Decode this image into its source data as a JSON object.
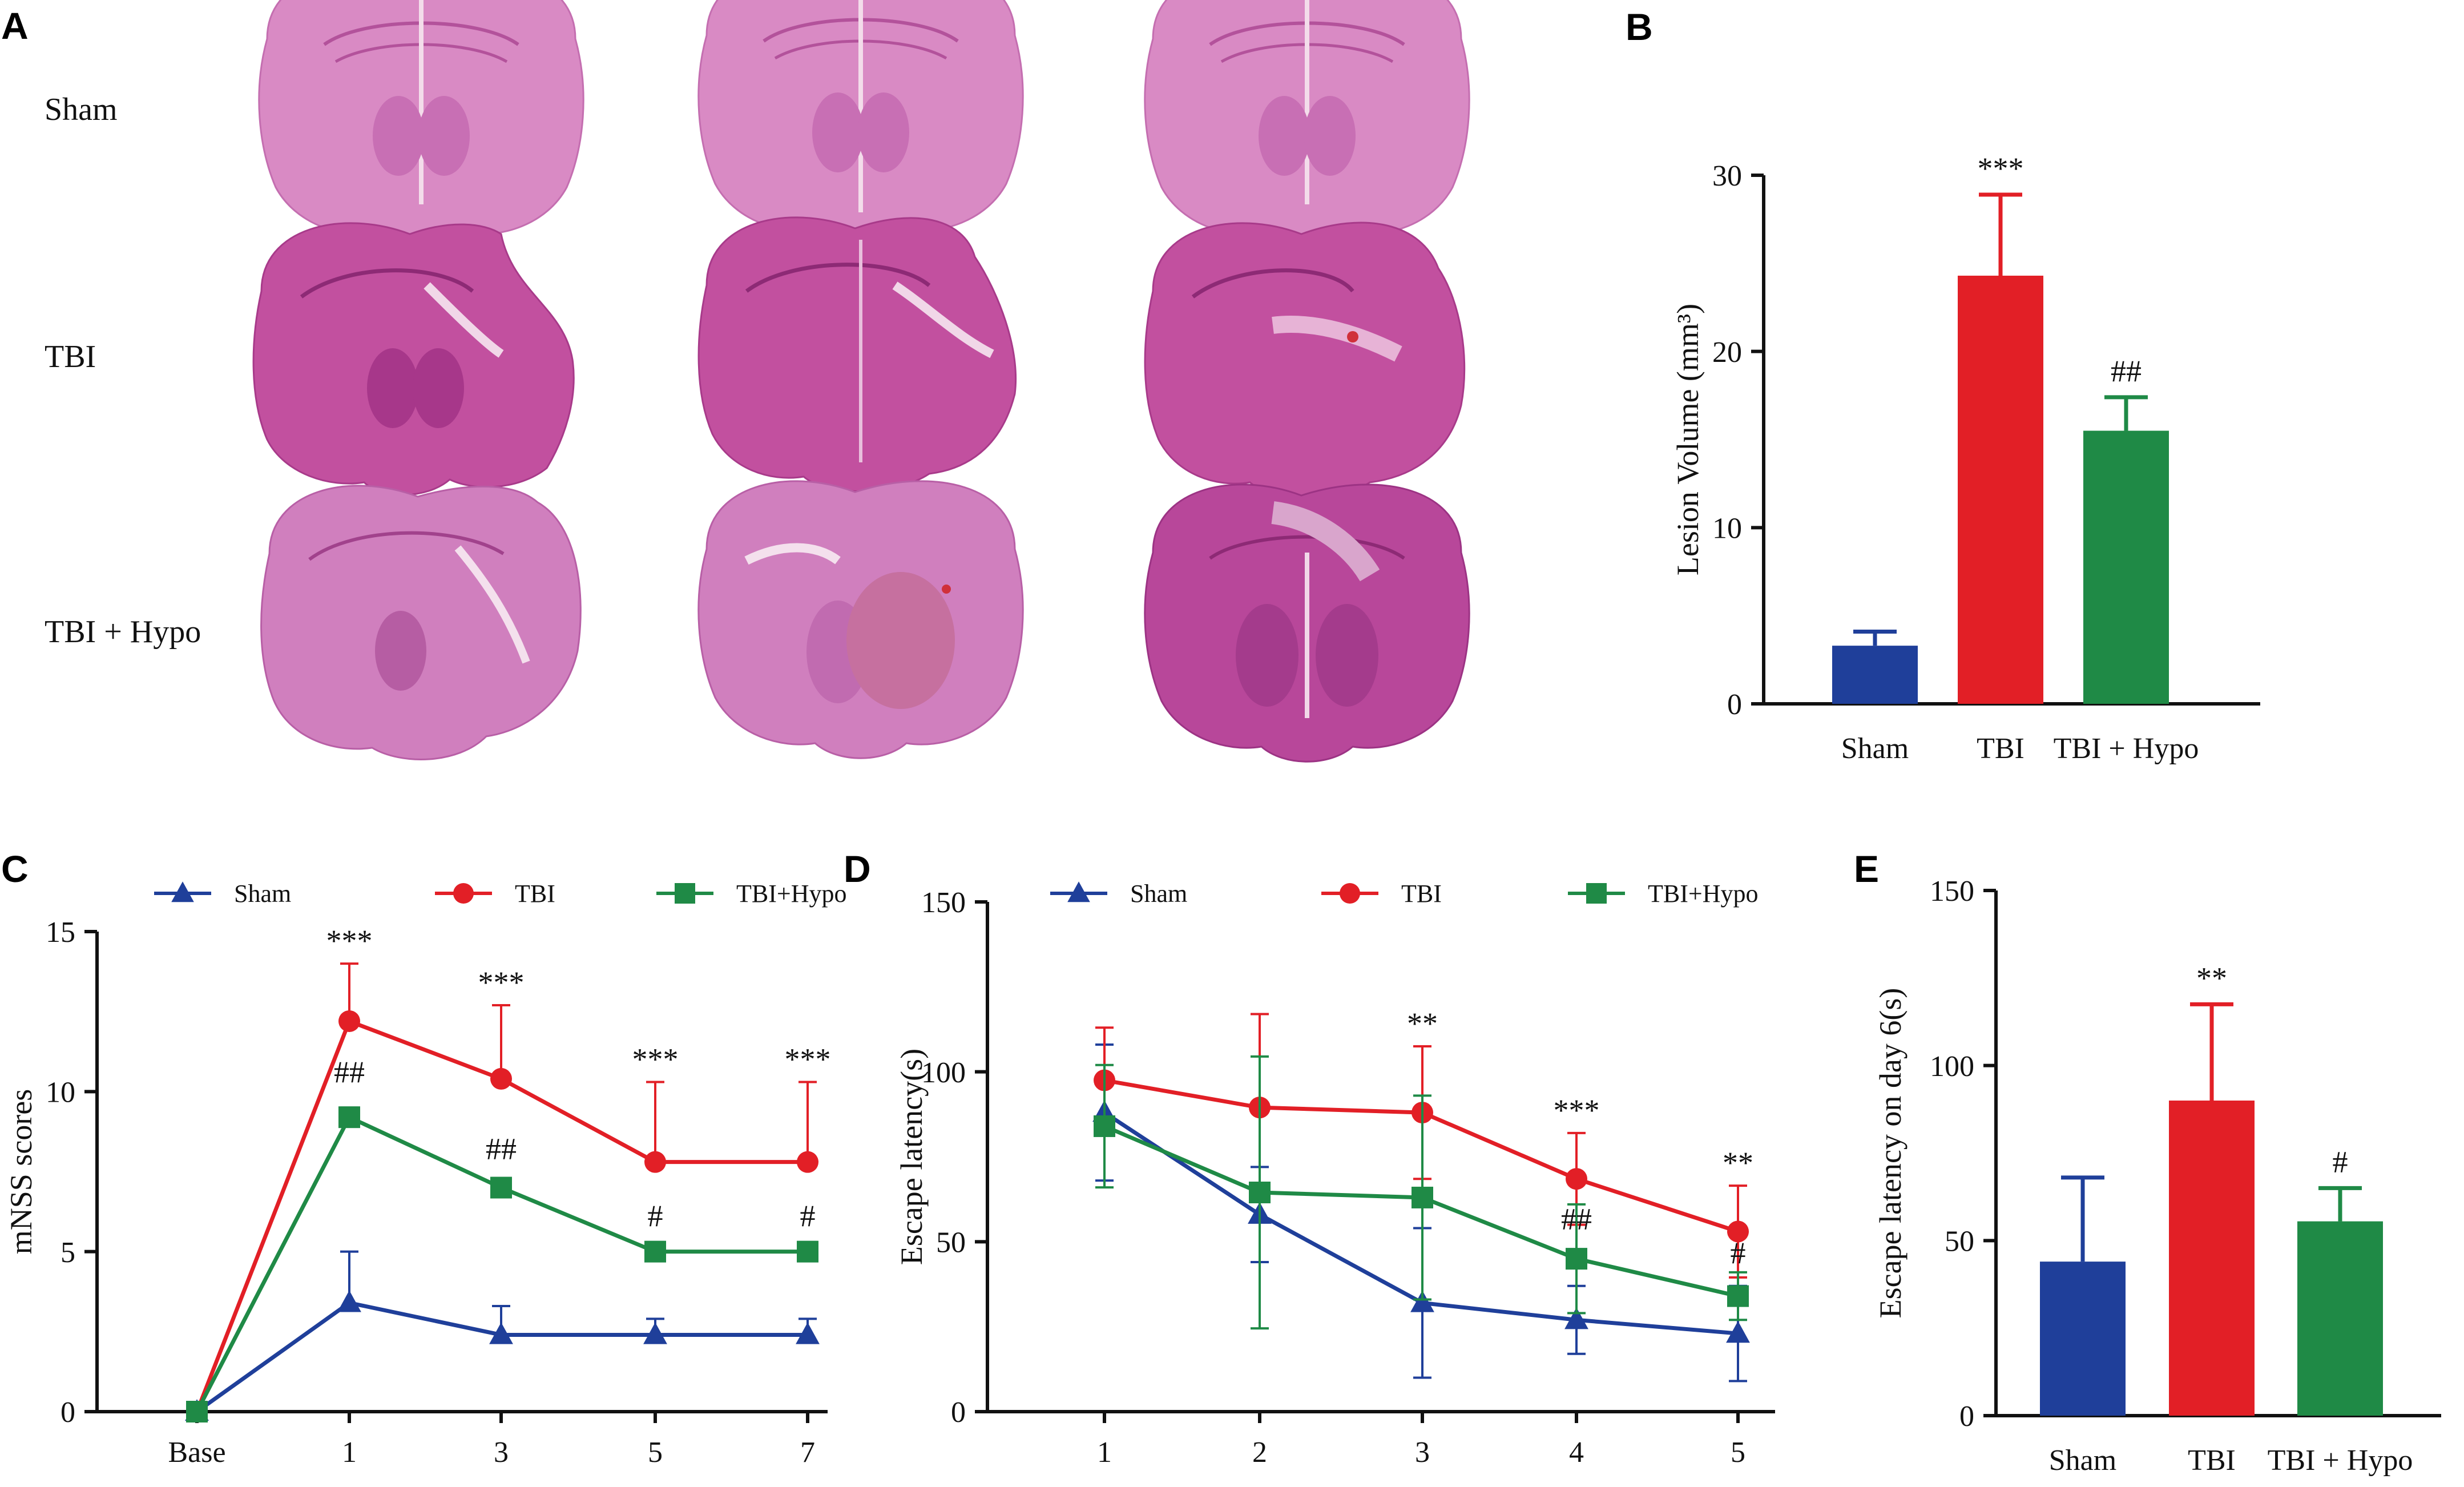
{
  "panels": {
    "A": {
      "label": "A",
      "rows": [
        "Sham",
        "TBI",
        "TBI + Hypo"
      ]
    }
  },
  "colors": {
    "Sham": "#1f3f9a",
    "TBI": "#e21f26",
    "TBI + Hypo": "#1f8a46",
    "stain_fill": "#d982c0",
    "stain_dark": "#b9449a"
  },
  "chart_data": [
    {
      "id": "B",
      "panel_label": "B",
      "type": "bar",
      "categories": [
        "Sham",
        "TBI",
        "TBI + Hypo"
      ],
      "values": [
        3.3,
        24.3,
        15.5
      ],
      "errors": [
        0.8,
        4.6,
        1.9
      ],
      "annotations": [
        "",
        "***",
        "##"
      ],
      "ylabel": "Lesion Volume (mm³)",
      "ylim": [
        0,
        30
      ],
      "yticks": [
        0,
        10,
        20,
        30
      ]
    },
    {
      "id": "C",
      "panel_label": "C",
      "type": "line",
      "x": [
        "Base",
        "1",
        "3",
        "5",
        "7"
      ],
      "ylabel": "mNSS scores",
      "ylim": [
        0,
        15
      ],
      "yticks": [
        0,
        5,
        10,
        15
      ],
      "series": [
        {
          "name": "Sham",
          "marker": "triangle",
          "values": [
            0,
            3.4,
            2.4,
            2.4,
            2.4
          ],
          "errors": [
            0,
            1.6,
            0.9,
            0.5,
            0.5
          ]
        },
        {
          "name": "TBI",
          "marker": "circle",
          "values": [
            0,
            12.2,
            10.4,
            7.8,
            7.8
          ],
          "errors": [
            0,
            1.8,
            2.3,
            2.5,
            2.5
          ]
        },
        {
          "name": "TBI+Hypo",
          "marker": "square",
          "values": [
            0,
            9.2,
            7.0,
            5.0,
            5.0
          ],
          "errors": [
            0,
            0.3,
            0.3,
            0.3,
            0.3
          ]
        }
      ],
      "annotations": [
        {
          "x": "1",
          "y": 14.0,
          "text": "***"
        },
        {
          "x": "3",
          "y": 12.7,
          "text": "***"
        },
        {
          "x": "5",
          "y": 10.3,
          "text": "***"
        },
        {
          "x": "7",
          "y": 10.3,
          "text": "***"
        },
        {
          "x": "1",
          "y": 9.9,
          "text": "##"
        },
        {
          "x": "3",
          "y": 7.5,
          "text": "##"
        },
        {
          "x": "5",
          "y": 5.4,
          "text": "#"
        },
        {
          "x": "7",
          "y": 5.4,
          "text": "#"
        }
      ]
    },
    {
      "id": "D",
      "panel_label": "D",
      "type": "line",
      "x": [
        "1",
        "2",
        "3",
        "4",
        "5"
      ],
      "ylabel": "Escape latency(s)",
      "ylim": [
        0,
        150
      ],
      "yticks": [
        0,
        50,
        100,
        150
      ],
      "series": [
        {
          "name": "Sham",
          "marker": "triangle",
          "values": [
            88,
            58,
            32,
            27,
            23
          ],
          "errors": [
            20,
            14,
            22,
            10,
            14
          ]
        },
        {
          "name": "TBI",
          "marker": "circle",
          "values": [
            97.5,
            89.5,
            88,
            68.5,
            53
          ],
          "errors": [
            15.5,
            27.5,
            19.5,
            13.5,
            13.5
          ]
        },
        {
          "name": "TBI+Hypo",
          "marker": "square",
          "values": [
            84,
            64.5,
            63,
            45,
            34
          ],
          "errors": [
            18,
            40,
            30,
            16,
            7
          ]
        }
      ],
      "annotations": [
        {
          "x": "3",
          "y": 107.5,
          "text": "**"
        },
        {
          "x": "4",
          "y": 82,
          "text": "***"
        },
        {
          "x": "5",
          "y": 66.5,
          "text": "**"
        },
        {
          "x": "4",
          "y": 50,
          "text": "##"
        },
        {
          "x": "5",
          "y": 40,
          "text": "#"
        }
      ]
    },
    {
      "id": "E",
      "panel_label": "E",
      "type": "bar",
      "categories": [
        "Sham",
        "TBI",
        "TBI + Hypo"
      ],
      "values": [
        44,
        90,
        55.5
      ],
      "errors": [
        24,
        27.5,
        9.5
      ],
      "annotations": [
        "",
        "**",
        "#"
      ],
      "ylabel": "Escape latency on day 6(s)",
      "ylim": [
        0,
        150
      ],
      "yticks": [
        0,
        50,
        100,
        150
      ]
    }
  ]
}
